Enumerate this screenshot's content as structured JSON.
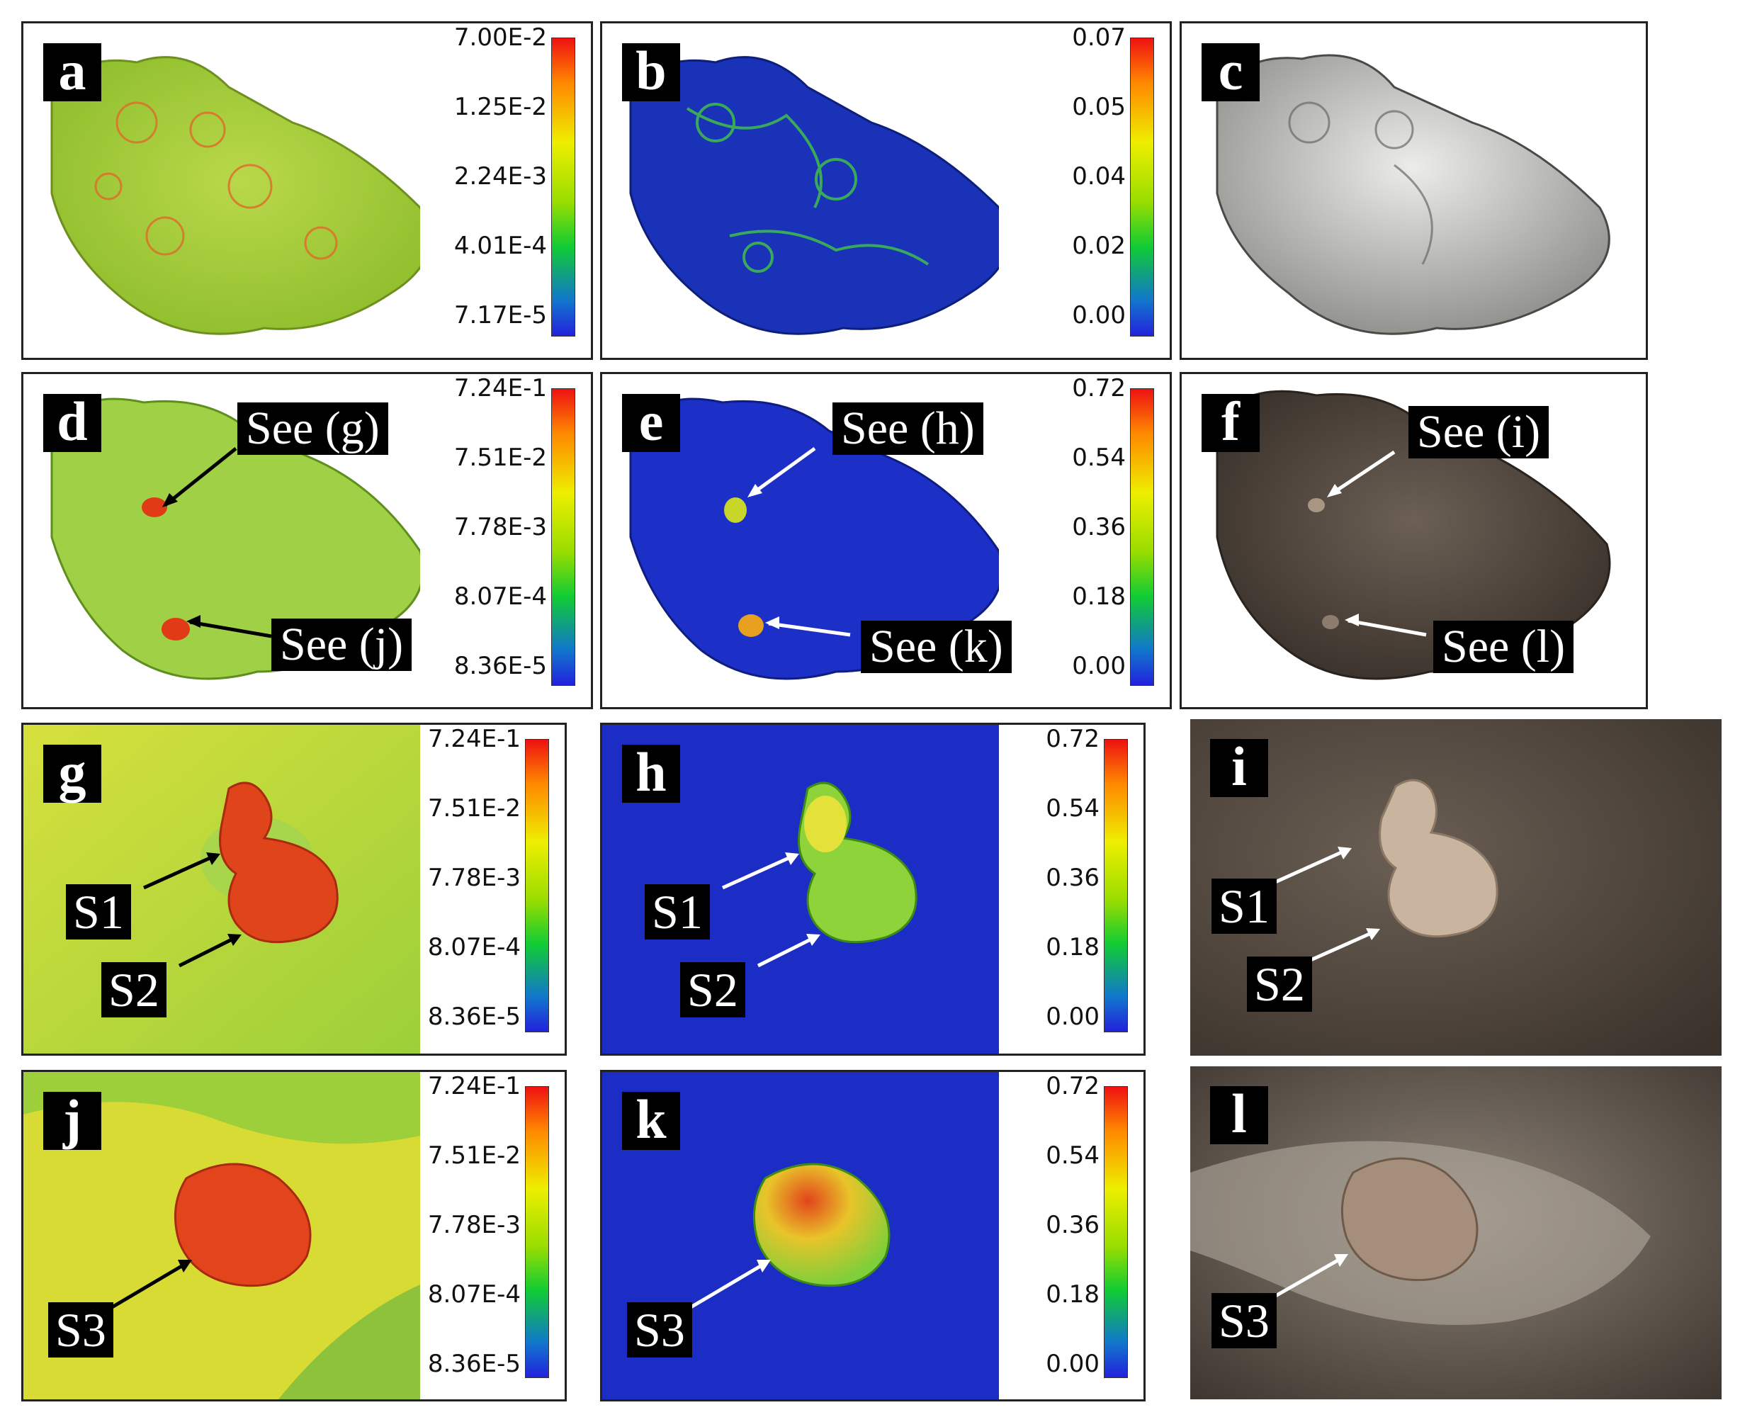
{
  "panels": {
    "a": {
      "letter": "a",
      "ticks": [
        "7.00E-2",
        "1.25E-2",
        "2.24E-3",
        "4.01E-4",
        "7.17E-5"
      ]
    },
    "b": {
      "letter": "b",
      "ticks": [
        "0.07",
        "0.05",
        "0.04",
        "0.02",
        "0.00"
      ]
    },
    "c": {
      "letter": "c"
    },
    "d": {
      "letter": "d",
      "ticks": [
        "7.24E-1",
        "7.51E-2",
        "7.78E-3",
        "8.07E-4",
        "8.36E-5"
      ],
      "callouts": [
        "See (g)",
        "See (j)"
      ]
    },
    "e": {
      "letter": "e",
      "ticks": [
        "0.72",
        "0.54",
        "0.36",
        "0.18",
        "0.00"
      ],
      "callouts": [
        "See (h)",
        "See (k)"
      ]
    },
    "f": {
      "letter": "f",
      "callouts": [
        "See (i)",
        "See (l)"
      ]
    },
    "g": {
      "letter": "g",
      "ticks": [
        "7.24E-1",
        "7.51E-2",
        "7.78E-3",
        "8.07E-4",
        "8.36E-5"
      ],
      "labels": [
        "S1",
        "S2"
      ]
    },
    "h": {
      "letter": "h",
      "ticks": [
        "0.72",
        "0.54",
        "0.36",
        "0.18",
        "0.00"
      ],
      "labels": [
        "S1",
        "S2"
      ]
    },
    "i": {
      "letter": "i",
      "labels": [
        "S1",
        "S2"
      ]
    },
    "j": {
      "letter": "j",
      "ticks": [
        "7.24E-1",
        "7.51E-2",
        "7.78E-3",
        "8.07E-4",
        "8.36E-5"
      ],
      "labels": [
        "S3"
      ]
    },
    "k": {
      "letter": "k",
      "ticks": [
        "0.72",
        "0.54",
        "0.36",
        "0.18",
        "0.00"
      ],
      "labels": [
        "S3"
      ]
    },
    "l": {
      "letter": "l",
      "labels": [
        "S3"
      ]
    }
  },
  "colors": {
    "green_map": "#9ccf3a",
    "blue_map": "#1a2fc8",
    "gray_render": "#c9c9c4",
    "photo_brown": "#5b5046",
    "highlight_red": "#e13a17"
  }
}
